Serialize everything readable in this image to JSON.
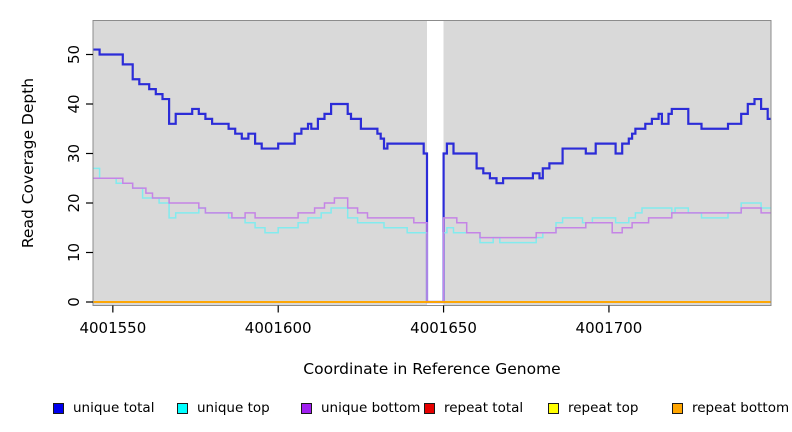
{
  "chart_data": {
    "type": "line",
    "subtype": "step",
    "title": "",
    "xlabel": "Coordinate in Reference Genome",
    "ylabel": "Read Coverage Depth",
    "x_ticks": [
      4001550,
      4001600,
      4001650,
      4001700
    ],
    "y_ticks": [
      0,
      10,
      20,
      30,
      40,
      50
    ],
    "xlim": [
      4001544,
      4001749
    ],
    "ylim": [
      0,
      57
    ],
    "grid": false,
    "plot_background": "#d9d9d9",
    "plot_border_color": "#8c8c8c",
    "gap_region": {
      "x_start": 4001645,
      "x_end": 4001650,
      "color": "#ffffff"
    },
    "legend_position": "bottom",
    "series": [
      {
        "key": "unique_total",
        "name": "unique total",
        "legend_color": "#0000ee",
        "line_color": "#2c2cd8",
        "line_width": 2.2,
        "points": [
          [
            4001544,
            51
          ],
          [
            4001546,
            50
          ],
          [
            4001553,
            48
          ],
          [
            4001556,
            45
          ],
          [
            4001558,
            44
          ],
          [
            4001561,
            43
          ],
          [
            4001563,
            42
          ],
          [
            4001565,
            41
          ],
          [
            4001567,
            36
          ],
          [
            4001569,
            38
          ],
          [
            4001574,
            39
          ],
          [
            4001576,
            38
          ],
          [
            4001578,
            37
          ],
          [
            4001580,
            36
          ],
          [
            4001585,
            35
          ],
          [
            4001587,
            34
          ],
          [
            4001589,
            33
          ],
          [
            4001591,
            34
          ],
          [
            4001593,
            32
          ],
          [
            4001595,
            31
          ],
          [
            4001600,
            32
          ],
          [
            4001605,
            34
          ],
          [
            4001607,
            35
          ],
          [
            4001609,
            36
          ],
          [
            4001610,
            35
          ],
          [
            4001612,
            37
          ],
          [
            4001614,
            38
          ],
          [
            4001616,
            40
          ],
          [
            4001621,
            38
          ],
          [
            4001622,
            37
          ],
          [
            4001625,
            35
          ],
          [
            4001630,
            34
          ],
          [
            4001631,
            33
          ],
          [
            4001632,
            31
          ],
          [
            4001633,
            32
          ],
          [
            4001644,
            30
          ],
          [
            4001645,
            0
          ],
          [
            4001650,
            30
          ],
          [
            4001651,
            32
          ],
          [
            4001653,
            30
          ],
          [
            4001660,
            27
          ],
          [
            4001662,
            26
          ],
          [
            4001664,
            25
          ],
          [
            4001666,
            24
          ],
          [
            4001668,
            25
          ],
          [
            4001677,
            26
          ],
          [
            4001679,
            25
          ],
          [
            4001680,
            27
          ],
          [
            4001682,
            28
          ],
          [
            4001686,
            31
          ],
          [
            4001693,
            30
          ],
          [
            4001696,
            32
          ],
          [
            4001702,
            30
          ],
          [
            4001704,
            32
          ],
          [
            4001706,
            33
          ],
          [
            4001707,
            34
          ],
          [
            4001708,
            35
          ],
          [
            4001711,
            36
          ],
          [
            4001713,
            37
          ],
          [
            4001715,
            38
          ],
          [
            4001716,
            36
          ],
          [
            4001718,
            38
          ],
          [
            4001719,
            39
          ],
          [
            4001724,
            36
          ],
          [
            4001728,
            35
          ],
          [
            4001736,
            36
          ],
          [
            4001740,
            38
          ],
          [
            4001742,
            40
          ],
          [
            4001744,
            41
          ],
          [
            4001746,
            39
          ],
          [
            4001748,
            37
          ]
        ]
      },
      {
        "key": "unique_top",
        "name": "unique top",
        "legend_color": "#00ffff",
        "line_color": "#82ebee",
        "line_width": 1.5,
        "points": [
          [
            4001544,
            27
          ],
          [
            4001546,
            25
          ],
          [
            4001551,
            24
          ],
          [
            4001556,
            23
          ],
          [
            4001559,
            21
          ],
          [
            4001564,
            20
          ],
          [
            4001567,
            17
          ],
          [
            4001569,
            18
          ],
          [
            4001576,
            19
          ],
          [
            4001578,
            18
          ],
          [
            4001585,
            17
          ],
          [
            4001590,
            16
          ],
          [
            4001593,
            15
          ],
          [
            4001596,
            14
          ],
          [
            4001600,
            15
          ],
          [
            4001606,
            16
          ],
          [
            4001609,
            17
          ],
          [
            4001613,
            18
          ],
          [
            4001616,
            19
          ],
          [
            4001621,
            17
          ],
          [
            4001624,
            16
          ],
          [
            4001632,
            15
          ],
          [
            4001639,
            14
          ],
          [
            4001645,
            0
          ],
          [
            4001650,
            14
          ],
          [
            4001651,
            15
          ],
          [
            4001653,
            14
          ],
          [
            4001661,
            12
          ],
          [
            4001665,
            13
          ],
          [
            4001667,
            12
          ],
          [
            4001678,
            13
          ],
          [
            4001680,
            14
          ],
          [
            4001684,
            16
          ],
          [
            4001686,
            17
          ],
          [
            4001692,
            16
          ],
          [
            4001695,
            17
          ],
          [
            4001702,
            16
          ],
          [
            4001706,
            17
          ],
          [
            4001708,
            18
          ],
          [
            4001710,
            19
          ],
          [
            4001719,
            18
          ],
          [
            4001720,
            19
          ],
          [
            4001724,
            18
          ],
          [
            4001728,
            17
          ],
          [
            4001736,
            18
          ],
          [
            4001740,
            20
          ],
          [
            4001746,
            19
          ]
        ]
      },
      {
        "key": "unique_bottom",
        "name": "unique bottom",
        "legend_color": "#a020f0",
        "line_color": "#c584e6",
        "line_width": 1.5,
        "points": [
          [
            4001544,
            25
          ],
          [
            4001553,
            24
          ],
          [
            4001556,
            23
          ],
          [
            4001560,
            22
          ],
          [
            4001562,
            21
          ],
          [
            4001567,
            20
          ],
          [
            4001576,
            19
          ],
          [
            4001578,
            18
          ],
          [
            4001586,
            17
          ],
          [
            4001590,
            18
          ],
          [
            4001593,
            17
          ],
          [
            4001606,
            18
          ],
          [
            4001611,
            19
          ],
          [
            4001614,
            20
          ],
          [
            4001617,
            21
          ],
          [
            4001621,
            19
          ],
          [
            4001624,
            18
          ],
          [
            4001627,
            17
          ],
          [
            4001641,
            16
          ],
          [
            4001645,
            0
          ],
          [
            4001650,
            17
          ],
          [
            4001654,
            16
          ],
          [
            4001657,
            14
          ],
          [
            4001661,
            13
          ],
          [
            4001678,
            14
          ],
          [
            4001684,
            15
          ],
          [
            4001693,
            16
          ],
          [
            4001701,
            14
          ],
          [
            4001704,
            15
          ],
          [
            4001707,
            16
          ],
          [
            4001712,
            17
          ],
          [
            4001719,
            18
          ],
          [
            4001740,
            19
          ],
          [
            4001746,
            18
          ]
        ]
      },
      {
        "key": "repeat_total",
        "name": "repeat total",
        "legend_color": "#e60000",
        "line_color": "#e60000",
        "line_width": 1.4,
        "points": [
          [
            4001544,
            0
          ]
        ]
      },
      {
        "key": "repeat_top",
        "name": "repeat top",
        "legend_color": "#ffff00",
        "line_color": "#ffff00",
        "line_width": 1.4,
        "points": [
          [
            4001544,
            0
          ]
        ]
      },
      {
        "key": "repeat_bottom",
        "name": "repeat bottom",
        "legend_color": "#ffa500",
        "line_color": "#ffa500",
        "line_width": 1.7,
        "points": [
          [
            4001544,
            0
          ]
        ]
      }
    ]
  }
}
